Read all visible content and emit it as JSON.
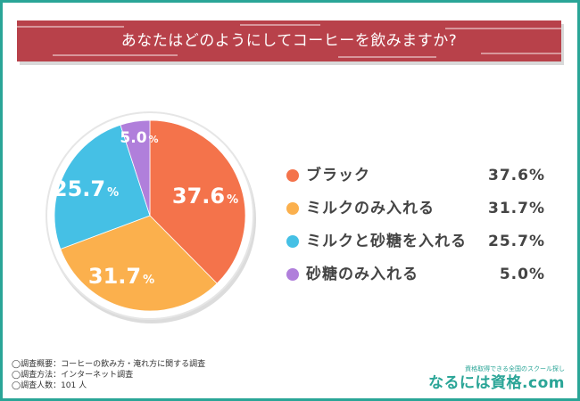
{
  "title": "あなたはどのようにしてコーヒーを飲みますか?",
  "chart_data": {
    "type": "pie",
    "categories": [
      "ブラック",
      "ミルクのみ入れる",
      "ミルクと砂糖を入れる",
      "砂糖のみ入れる"
    ],
    "values": [
      37.6,
      31.7,
      25.7,
      5.0
    ],
    "value_labels": [
      "37.6%",
      "31.7%",
      "25.7%",
      "5.0%"
    ],
    "pie_labels": [
      {
        "num": "37.6",
        "unit": "%"
      },
      {
        "num": "31.7",
        "unit": "%"
      },
      {
        "num": "25.7",
        "unit": "%"
      },
      {
        "num": "5.0",
        "unit": "%"
      }
    ],
    "colors": [
      "#f4734b",
      "#fbb04d",
      "#45c0e5",
      "#b07fdb"
    ],
    "start": "12 o'clock",
    "direction": "clockwise",
    "legend_position": "right"
  },
  "notes": [
    "◯調査概要：コーヒーの飲み方・淹れ方に関する調査",
    "◯調査方法：インターネット調査",
    "◯調査人数：101 人"
  ],
  "brand": {
    "tagline": "資格取得できる全国のスクール探し",
    "name": "なるには資格.com"
  }
}
